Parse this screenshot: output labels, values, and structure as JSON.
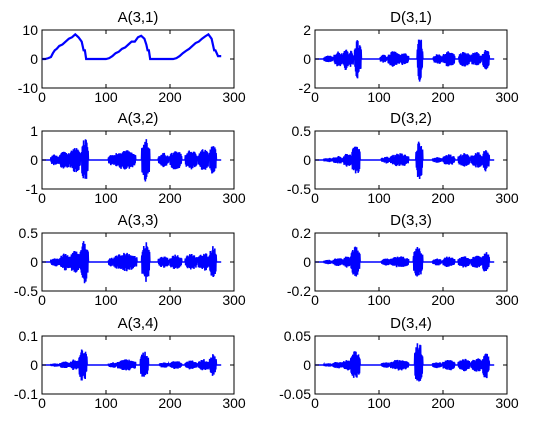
{
  "figure": {
    "line_color": "#0000ff",
    "background": "#ffffff"
  },
  "chart_data": [
    {
      "type": "line",
      "title": "A(3,1)",
      "xlim": [
        0,
        300
      ],
      "ylim": [
        -10,
        10
      ],
      "xticks": [
        0,
        100,
        200,
        300
      ],
      "yticks": [
        -10,
        0,
        10
      ],
      "xticklabels": [
        "0",
        "100",
        "200",
        "300"
      ],
      "yticklabels": [
        "-10",
        "0",
        "10"
      ],
      "series": [
        {
          "x": [
            0,
            5,
            10,
            14,
            17,
            20,
            23,
            27,
            32,
            37,
            42,
            47,
            52,
            57,
            62,
            65,
            67,
            69,
            71,
            80,
            90,
            100,
            105,
            110,
            115,
            120,
            125,
            130,
            135,
            140,
            145,
            150,
            155,
            160,
            163,
            165,
            167,
            169,
            180,
            190,
            200,
            205,
            210,
            215,
            220,
            225,
            230,
            235,
            240,
            245,
            250,
            255,
            260,
            265,
            267,
            269,
            271,
            275,
            280
          ],
          "y": [
            0,
            0,
            0.3,
            0.7,
            2,
            3,
            3.5,
            4.5,
            5,
            6,
            7,
            7.5,
            8.5,
            7.5,
            6,
            3,
            3,
            0,
            0,
            0,
            0,
            0,
            0.3,
            1,
            2,
            2.5,
            3.5,
            4,
            5,
            6,
            6,
            7.5,
            8,
            7,
            5,
            3,
            3,
            0,
            0,
            0,
            0,
            0,
            0.3,
            1,
            2,
            2.8,
            3.5,
            4.5,
            5.5,
            6,
            7,
            7.8,
            8.5,
            7,
            5,
            3,
            3,
            1,
            1
          ]
        }
      ]
    },
    {
      "type": "line",
      "title": "D(3,1)",
      "xlim": [
        0,
        300
      ],
      "ylim": [
        -2,
        2
      ],
      "xticks": [
        0,
        100,
        200,
        300
      ],
      "yticks": [
        -2,
        0,
        2
      ],
      "xticklabels": [
        "0",
        "100",
        "200",
        "300"
      ],
      "yticklabels": [
        "-2",
        "0",
        "2"
      ],
      "series": [
        {
          "bursts": [
            {
              "start": 14,
              "end": 28,
              "amp": 0.25
            },
            {
              "start": 30,
              "end": 44,
              "amp": 0.55
            },
            {
              "start": 44,
              "end": 52,
              "amp": 0.8
            },
            {
              "start": 52,
              "end": 60,
              "amp": 0.6
            },
            {
              "start": 62,
              "end": 72,
              "amp": 1.4
            },
            {
              "start": 102,
              "end": 112,
              "amp": 0.3
            },
            {
              "start": 114,
              "end": 132,
              "amp": 0.55
            },
            {
              "start": 132,
              "end": 146,
              "amp": 0.45
            },
            {
              "start": 160,
              "end": 168,
              "amp": 1.6
            },
            {
              "start": 185,
              "end": 200,
              "amp": 0.35
            },
            {
              "start": 200,
              "end": 218,
              "amp": 0.55
            },
            {
              "start": 225,
              "end": 242,
              "amp": 0.55
            },
            {
              "start": 243,
              "end": 260,
              "amp": 0.5
            },
            {
              "start": 262,
              "end": 272,
              "amp": 0.75
            }
          ]
        }
      ]
    },
    {
      "type": "line",
      "title": "A(3,2)",
      "xlim": [
        0,
        300
      ],
      "ylim": [
        -1,
        1
      ],
      "xticks": [
        0,
        100,
        200,
        300
      ],
      "yticks": [
        -1,
        0,
        1
      ],
      "xticklabels": [
        "0",
        "100",
        "200",
        "300"
      ],
      "yticklabels": [
        "-1",
        "0",
        "1"
      ],
      "series": [
        {
          "bursts": [
            {
              "start": 14,
              "end": 28,
              "amp": 0.2
            },
            {
              "start": 28,
              "end": 44,
              "amp": 0.35
            },
            {
              "start": 44,
              "end": 60,
              "amp": 0.45
            },
            {
              "start": 62,
              "end": 72,
              "amp": 0.8
            },
            {
              "start": 104,
              "end": 112,
              "amp": 0.2
            },
            {
              "start": 112,
              "end": 146,
              "amp": 0.35
            },
            {
              "start": 156,
              "end": 168,
              "amp": 0.75
            },
            {
              "start": 182,
              "end": 198,
              "amp": 0.25
            },
            {
              "start": 200,
              "end": 218,
              "amp": 0.35
            },
            {
              "start": 224,
              "end": 242,
              "amp": 0.35
            },
            {
              "start": 244,
              "end": 260,
              "amp": 0.4
            },
            {
              "start": 262,
              "end": 272,
              "amp": 0.55
            }
          ]
        }
      ]
    },
    {
      "type": "line",
      "title": "D(3,2)",
      "xlim": [
        0,
        300
      ],
      "ylim": [
        -0.5,
        0.5
      ],
      "xticks": [
        0,
        100,
        200,
        300
      ],
      "yticks": [
        -0.5,
        0,
        0.5
      ],
      "xticklabels": [
        "0",
        "100",
        "200",
        "300"
      ],
      "yticklabels": [
        "-0.5",
        "0",
        "0.5"
      ],
      "series": [
        {
          "bursts": [
            {
              "start": 14,
              "end": 28,
              "amp": 0.04
            },
            {
              "start": 28,
              "end": 44,
              "amp": 0.07
            },
            {
              "start": 44,
              "end": 58,
              "amp": 0.12
            },
            {
              "start": 58,
              "end": 70,
              "amp": 0.3
            },
            {
              "start": 104,
              "end": 118,
              "amp": 0.06
            },
            {
              "start": 118,
              "end": 146,
              "amp": 0.12
            },
            {
              "start": 158,
              "end": 168,
              "amp": 0.35
            },
            {
              "start": 184,
              "end": 198,
              "amp": 0.05
            },
            {
              "start": 200,
              "end": 218,
              "amp": 0.1
            },
            {
              "start": 224,
              "end": 242,
              "amp": 0.12
            },
            {
              "start": 244,
              "end": 262,
              "amp": 0.14
            },
            {
              "start": 262,
              "end": 272,
              "amp": 0.2
            }
          ]
        }
      ]
    },
    {
      "type": "line",
      "title": "A(3,3)",
      "xlim": [
        0,
        300
      ],
      "ylim": [
        -0.5,
        0.5
      ],
      "xticks": [
        0,
        100,
        200,
        300
      ],
      "yticks": [
        -0.5,
        0,
        0.5
      ],
      "xticklabels": [
        "0",
        "100",
        "200",
        "300"
      ],
      "yticklabels": [
        "-0.5",
        "0",
        "0.5"
      ],
      "series": [
        {
          "bursts": [
            {
              "start": 14,
              "end": 28,
              "amp": 0.08
            },
            {
              "start": 28,
              "end": 44,
              "amp": 0.15
            },
            {
              "start": 44,
              "end": 60,
              "amp": 0.2
            },
            {
              "start": 60,
              "end": 72,
              "amp": 0.38
            },
            {
              "start": 104,
              "end": 112,
              "amp": 0.08
            },
            {
              "start": 112,
              "end": 148,
              "amp": 0.16
            },
            {
              "start": 156,
              "end": 168,
              "amp": 0.35
            },
            {
              "start": 182,
              "end": 198,
              "amp": 0.1
            },
            {
              "start": 200,
              "end": 218,
              "amp": 0.14
            },
            {
              "start": 224,
              "end": 242,
              "amp": 0.15
            },
            {
              "start": 244,
              "end": 262,
              "amp": 0.16
            },
            {
              "start": 262,
              "end": 272,
              "amp": 0.3
            }
          ]
        }
      ]
    },
    {
      "type": "line",
      "title": "D(3,3)",
      "xlim": [
        0,
        300
      ],
      "ylim": [
        -0.2,
        0.2
      ],
      "xticks": [
        0,
        100,
        200,
        300
      ],
      "yticks": [
        -0.2,
        0,
        0.2
      ],
      "xticklabels": [
        "0",
        "100",
        "200",
        "300"
      ],
      "yticklabels": [
        "-0.2",
        "0",
        "0.2"
      ],
      "series": [
        {
          "bursts": [
            {
              "start": 14,
              "end": 28,
              "amp": 0.015
            },
            {
              "start": 28,
              "end": 44,
              "amp": 0.03
            },
            {
              "start": 44,
              "end": 56,
              "amp": 0.04
            },
            {
              "start": 56,
              "end": 70,
              "amp": 0.11
            },
            {
              "start": 104,
              "end": 118,
              "amp": 0.025
            },
            {
              "start": 118,
              "end": 146,
              "amp": 0.04
            },
            {
              "start": 154,
              "end": 168,
              "amp": 0.11
            },
            {
              "start": 184,
              "end": 198,
              "amp": 0.025
            },
            {
              "start": 200,
              "end": 218,
              "amp": 0.04
            },
            {
              "start": 224,
              "end": 242,
              "amp": 0.04
            },
            {
              "start": 244,
              "end": 262,
              "amp": 0.045
            },
            {
              "start": 262,
              "end": 272,
              "amp": 0.08
            }
          ]
        }
      ]
    },
    {
      "type": "line",
      "title": "A(3,4)",
      "xlim": [
        0,
        300
      ],
      "ylim": [
        -0.1,
        0.1
      ],
      "xticks": [
        0,
        100,
        200,
        300
      ],
      "yticks": [
        -0.1,
        0,
        0.1
      ],
      "xticklabels": [
        "0",
        "100",
        "200",
        "300"
      ],
      "yticklabels": [
        "-0.1",
        "0",
        "0.1"
      ],
      "series": [
        {
          "bursts": [
            {
              "start": 14,
              "end": 28,
              "amp": 0.006
            },
            {
              "start": 28,
              "end": 44,
              "amp": 0.012
            },
            {
              "start": 44,
              "end": 58,
              "amp": 0.02
            },
            {
              "start": 58,
              "end": 70,
              "amp": 0.06
            },
            {
              "start": 104,
              "end": 118,
              "amp": 0.01
            },
            {
              "start": 118,
              "end": 146,
              "amp": 0.02
            },
            {
              "start": 154,
              "end": 166,
              "amp": 0.05
            },
            {
              "start": 184,
              "end": 198,
              "amp": 0.01
            },
            {
              "start": 200,
              "end": 218,
              "amp": 0.015
            },
            {
              "start": 224,
              "end": 242,
              "amp": 0.016
            },
            {
              "start": 244,
              "end": 262,
              "amp": 0.02
            },
            {
              "start": 262,
              "end": 272,
              "amp": 0.04
            }
          ]
        }
      ]
    },
    {
      "type": "line",
      "title": "D(3,4)",
      "xlim": [
        0,
        300
      ],
      "ylim": [
        -0.05,
        0.05
      ],
      "xticks": [
        0,
        100,
        200,
        300
      ],
      "yticks": [
        -0.05,
        0,
        0.05
      ],
      "xticklabels": [
        "0",
        "100",
        "200",
        "300"
      ],
      "yticklabels": [
        "-0.05",
        "0",
        "0.05"
      ],
      "series": [
        {
          "bursts": [
            {
              "start": 14,
              "end": 28,
              "amp": 0.003
            },
            {
              "start": 28,
              "end": 44,
              "amp": 0.006
            },
            {
              "start": 44,
              "end": 56,
              "amp": 0.01
            },
            {
              "start": 56,
              "end": 70,
              "amp": 0.025
            },
            {
              "start": 104,
              "end": 118,
              "amp": 0.005
            },
            {
              "start": 118,
              "end": 146,
              "amp": 0.01
            },
            {
              "start": 156,
              "end": 168,
              "amp": 0.04
            },
            {
              "start": 184,
              "end": 198,
              "amp": 0.006
            },
            {
              "start": 200,
              "end": 218,
              "amp": 0.01
            },
            {
              "start": 224,
              "end": 242,
              "amp": 0.011
            },
            {
              "start": 244,
              "end": 262,
              "amp": 0.012
            },
            {
              "start": 262,
              "end": 272,
              "amp": 0.025
            }
          ]
        }
      ]
    }
  ]
}
